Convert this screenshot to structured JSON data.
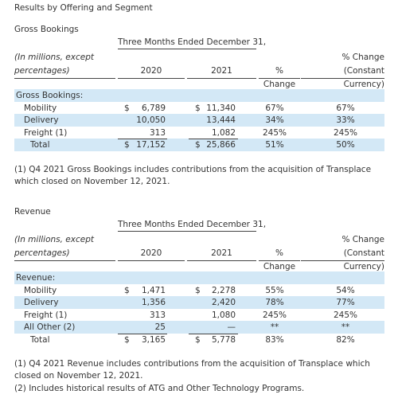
{
  "title": "Results by Offering and Segment",
  "sections": [
    {
      "heading": "Gross Bookings",
      "period_header": "Three Months Ended December 31,",
      "columns": [
        "(In millions, except percentages)",
        "2020",
        "2021",
        "% Change",
        "% Change (Constant Currency)"
      ],
      "group_label": "Gross Bookings:",
      "rows": [
        [
          "Mobility",
          "$",
          "6,789",
          "$",
          "11,340",
          "67%",
          "67%"
        ],
        [
          "Delivery",
          null,
          "10,050",
          null,
          "13,444",
          "34%",
          "33%"
        ],
        [
          "Freight (1)",
          null,
          "313",
          null,
          "1,082",
          "245%",
          "245%"
        ],
        [
          "Total",
          "$",
          "17,152",
          "$",
          "25,866",
          "51%",
          "50%"
        ]
      ],
      "footnotes": [
        "(1) Q4 2021 Gross Bookings includes contributions from the acquisition of Transplace which closed on November 12, 2021."
      ]
    },
    {
      "heading": "Revenue",
      "period_header": "Three Months Ended December 31,",
      "columns": [
        "(In millions, except percentages)",
        "2020",
        "2021",
        "% Change",
        "% Change (Constant Currency)"
      ],
      "group_label": "Revenue:",
      "rows": [
        [
          "Mobility",
          "$",
          "1,471",
          "$",
          "2,278",
          "55%",
          "54%"
        ],
        [
          "Delivery",
          null,
          "1,356",
          null,
          "2,420",
          "78%",
          "77%"
        ],
        [
          "Freight (1)",
          null,
          "313",
          null,
          "1,080",
          "245%",
          "245%"
        ],
        [
          "All Other (2)",
          null,
          "25",
          null,
          "—",
          "**",
          "**"
        ],
        [
          "Total",
          "$",
          "3,165",
          "$",
          "5,778",
          "83%",
          "82%"
        ]
      ],
      "footnotes": [
        "(1) Q4 2021 Revenue includes contributions from the acquisition of Transplace which closed on November 12, 2021.",
        "(2) Includes historical results of ATG and Other Technology Programs."
      ]
    }
  ]
}
